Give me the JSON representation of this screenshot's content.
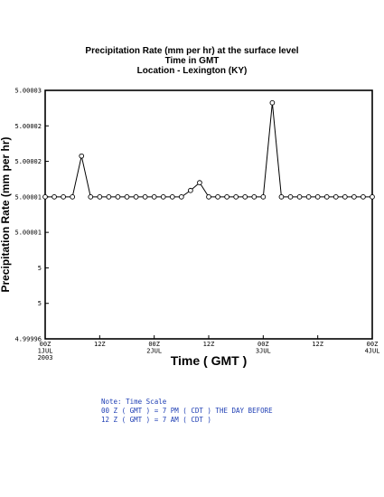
{
  "chart_data": {
    "type": "line",
    "title": "Precipitation Rate (mm per hr) at the surface level",
    "subtitle_1": "Time in GMT",
    "subtitle_2": "Location - Lexington (KY)",
    "xlabel": "Time ( GMT )",
    "ylabel": "Precipitation Rate (mm per hr)",
    "y_tick_labels": [
      "4.99996",
      "5",
      "5",
      "5.00001",
      "5.00001",
      "5.00002",
      "5.00002",
      "5.00003"
    ],
    "x_tick_labels": [
      [
        "00Z",
        "1JUL",
        "2003"
      ],
      [
        "12Z"
      ],
      [
        "00Z",
        "2JUL"
      ],
      [
        "12Z"
      ],
      [
        "00Z",
        "3JUL"
      ],
      [
        "12Z"
      ],
      [
        "00Z",
        "4JUL"
      ]
    ],
    "x_hours": [
      0,
      2,
      4,
      6,
      8,
      10,
      12,
      14,
      16,
      18,
      20,
      22,
      24,
      26,
      28,
      30,
      32,
      34,
      36,
      38,
      40,
      42,
      44,
      46,
      48,
      50,
      52,
      54,
      56,
      58,
      60,
      62,
      64,
      66,
      68,
      70,
      72
    ],
    "values": [
      5,
      5,
      5,
      5,
      5.0000115,
      5,
      5,
      5,
      5,
      5,
      5,
      5,
      5,
      5,
      5,
      5,
      5.0000018,
      5.000004,
      5,
      5,
      5,
      5,
      5,
      5,
      5,
      5.0000265,
      5,
      5,
      5,
      5,
      5,
      5,
      5,
      5,
      5,
      5,
      5
    ],
    "xlim": [
      0,
      72
    ],
    "ylim": [
      4.99996,
      5.00003
    ],
    "grid": false
  },
  "notes": [
    "Note: Time Scale",
    "00 Z ( GMT ) = 7 PM ( CDT ) THE DAY BEFORE",
    "12 Z ( GMT ) = 7 AM ( CDT )"
  ]
}
